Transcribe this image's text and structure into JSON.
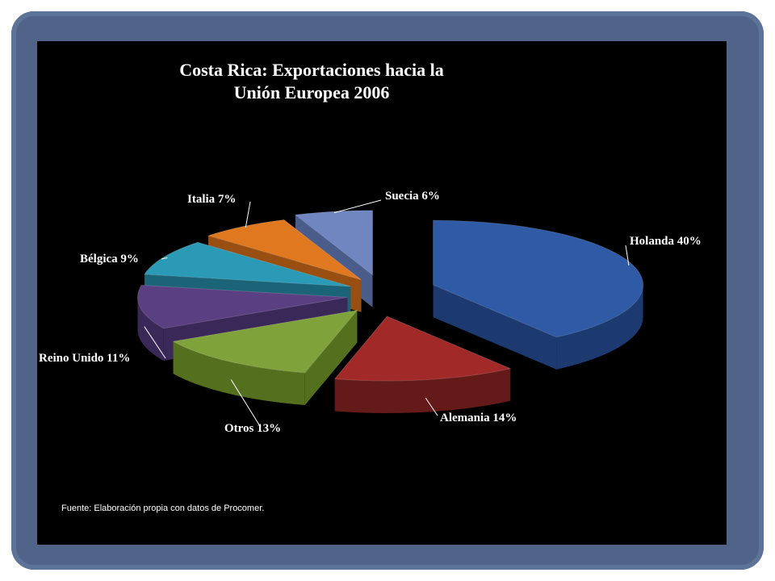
{
  "chart_data": {
    "type": "pie",
    "title_line1": "Costa Rica: Exportaciones hacia la",
    "title_line2": "Unión Europea 2006",
    "unit": "%",
    "slices": [
      {
        "name": "Holanda",
        "value": 40,
        "color": "#2e5aa6",
        "side": "#1c3a70"
      },
      {
        "name": "Alemania",
        "value": 14,
        "color": "#a12a28",
        "side": "#641a18"
      },
      {
        "name": "Otros",
        "value": 13,
        "color": "#7fa33a",
        "side": "#54701f"
      },
      {
        "name": "Reino Unido",
        "value": 11,
        "color": "#5a4082",
        "side": "#3a2858"
      },
      {
        "name": "Bélgica",
        "value": 9,
        "color": "#2a9ab6",
        "side": "#1b6478"
      },
      {
        "name": "Italia",
        "value": 7,
        "color": "#e07820",
        "side": "#9a4f12"
      },
      {
        "name": "Suecia",
        "value": 6,
        "color": "#6f86c0",
        "side": "#4a5c8a"
      }
    ],
    "legend": "none"
  },
  "source": "Fuente: Elaboración propia con datos de Procomer."
}
